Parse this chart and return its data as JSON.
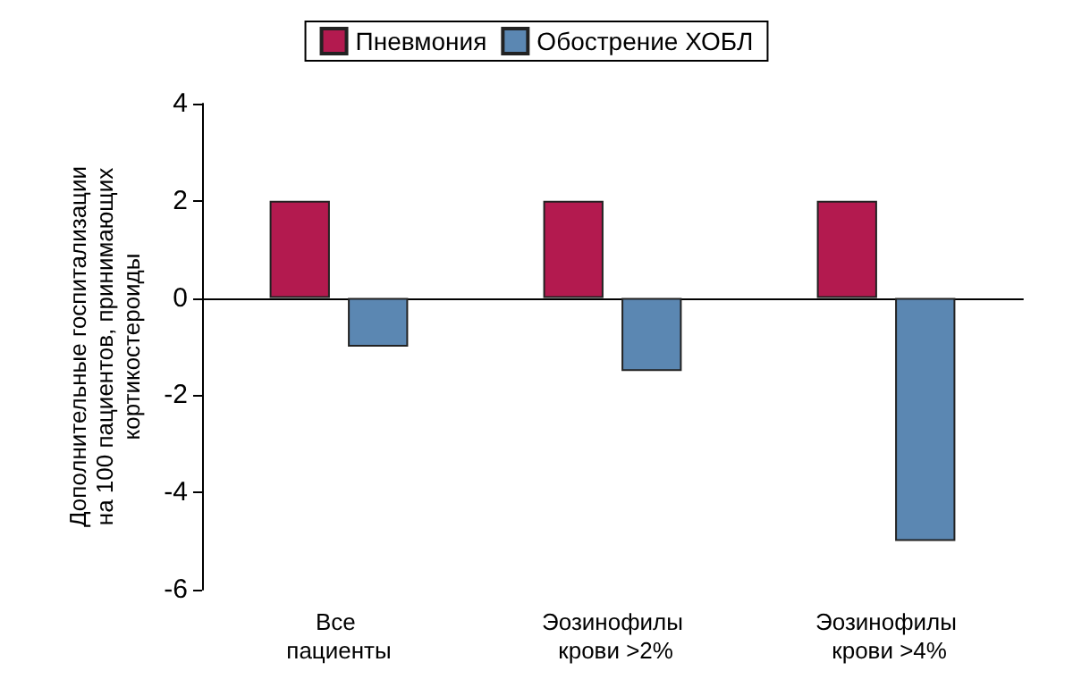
{
  "chart_data": {
    "type": "bar",
    "ylabel": "Дополнительные госпитализации на 100 пациентов, принимающих кортикостероиды",
    "categories": [
      "Все пациенты",
      "Эозинофилы крови >2%",
      "Эозинофилы крови >4%"
    ],
    "series": [
      {
        "name": "Пневмония",
        "color": "#b31a4f",
        "values": [
          2,
          2,
          2
        ]
      },
      {
        "name": "Обострение ХОБЛ",
        "color": "#5b87b2",
        "values": [
          -1,
          -1.5,
          -5
        ]
      }
    ],
    "ylim": [
      -6,
      4
    ],
    "yticks": [
      -6,
      -4,
      -2,
      0,
      2,
      4
    ],
    "legend": "top"
  }
}
